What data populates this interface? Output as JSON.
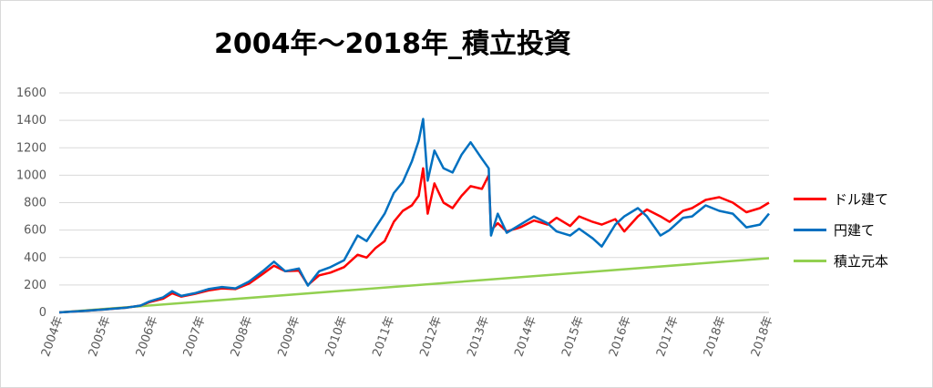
{
  "chart_data": {
    "type": "line",
    "title": "2004年～2018年_積立投資",
    "xlabel": "",
    "ylabel": "",
    "ylim": [
      0,
      1600
    ],
    "y_ticks": [
      "0",
      "200",
      "400",
      "600",
      "800",
      "1000",
      "1200",
      "1400",
      "1600"
    ],
    "x_ticks": [
      "2004年",
      "2005年",
      "2006年",
      "2007年",
      "2008年",
      "2009年",
      "2010年",
      "2011年",
      "2012年",
      "2013年",
      "2014年",
      "2015年",
      "2016年",
      "2017年",
      "2018年",
      "2018年"
    ],
    "grid": true,
    "legend_position": "right",
    "series": [
      {
        "name": "ドル建て",
        "color": "#ff0000",
        "points": [
          [
            2004.0,
            0
          ],
          [
            2004.5,
            10
          ],
          [
            2005.0,
            22
          ],
          [
            2005.5,
            35
          ],
          [
            2005.8,
            50
          ],
          [
            2006.0,
            75
          ],
          [
            2006.3,
            100
          ],
          [
            2006.5,
            140
          ],
          [
            2006.7,
            115
          ],
          [
            2007.0,
            135
          ],
          [
            2007.3,
            160
          ],
          [
            2007.6,
            175
          ],
          [
            2007.9,
            170
          ],
          [
            2008.2,
            210
          ],
          [
            2008.5,
            280
          ],
          [
            2008.75,
            340
          ],
          [
            2009.0,
            300
          ],
          [
            2009.3,
            305
          ],
          [
            2009.5,
            200
          ],
          [
            2009.75,
            270
          ],
          [
            2010.0,
            290
          ],
          [
            2010.3,
            330
          ],
          [
            2010.6,
            420
          ],
          [
            2010.8,
            400
          ],
          [
            2011.0,
            470
          ],
          [
            2011.2,
            520
          ],
          [
            2011.4,
            660
          ],
          [
            2011.6,
            740
          ],
          [
            2011.8,
            780
          ],
          [
            2011.95,
            850
          ],
          [
            2012.05,
            1050
          ],
          [
            2012.15,
            720
          ],
          [
            2012.3,
            940
          ],
          [
            2012.5,
            800
          ],
          [
            2012.7,
            760
          ],
          [
            2012.9,
            850
          ],
          [
            2013.1,
            920
          ],
          [
            2013.35,
            900
          ],
          [
            2013.5,
            1000
          ],
          [
            2013.55,
            600
          ],
          [
            2013.7,
            650
          ],
          [
            2013.9,
            590
          ],
          [
            2014.2,
            620
          ],
          [
            2014.5,
            670
          ],
          [
            2014.8,
            640
          ],
          [
            2015.0,
            690
          ],
          [
            2015.3,
            630
          ],
          [
            2015.5,
            700
          ],
          [
            2015.8,
            660
          ],
          [
            2016.0,
            640
          ],
          [
            2016.3,
            680
          ],
          [
            2016.5,
            590
          ],
          [
            2016.8,
            700
          ],
          [
            2017.0,
            750
          ],
          [
            2017.3,
            700
          ],
          [
            2017.5,
            660
          ],
          [
            2017.8,
            740
          ],
          [
            2018.0,
            760
          ],
          [
            2018.3,
            820
          ],
          [
            2018.6,
            840
          ],
          [
            2018.9,
            800
          ],
          [
            2019.2,
            730
          ],
          [
            2019.5,
            760
          ],
          [
            2019.7,
            800
          ]
        ]
      },
      {
        "name": "円建て",
        "color": "#0070c0",
        "points": [
          [
            2004.0,
            0
          ],
          [
            2004.5,
            10
          ],
          [
            2005.0,
            22
          ],
          [
            2005.5,
            35
          ],
          [
            2005.8,
            50
          ],
          [
            2006.0,
            80
          ],
          [
            2006.3,
            110
          ],
          [
            2006.5,
            155
          ],
          [
            2006.7,
            120
          ],
          [
            2007.0,
            140
          ],
          [
            2007.3,
            170
          ],
          [
            2007.6,
            185
          ],
          [
            2007.9,
            175
          ],
          [
            2008.2,
            225
          ],
          [
            2008.5,
            300
          ],
          [
            2008.75,
            370
          ],
          [
            2009.0,
            300
          ],
          [
            2009.3,
            320
          ],
          [
            2009.5,
            195
          ],
          [
            2009.75,
            300
          ],
          [
            2010.0,
            330
          ],
          [
            2010.3,
            380
          ],
          [
            2010.6,
            560
          ],
          [
            2010.8,
            520
          ],
          [
            2011.0,
            620
          ],
          [
            2011.2,
            720
          ],
          [
            2011.4,
            870
          ],
          [
            2011.6,
            950
          ],
          [
            2011.8,
            1100
          ],
          [
            2011.95,
            1250
          ],
          [
            2012.05,
            1410
          ],
          [
            2012.15,
            960
          ],
          [
            2012.3,
            1180
          ],
          [
            2012.5,
            1050
          ],
          [
            2012.7,
            1020
          ],
          [
            2012.9,
            1150
          ],
          [
            2013.1,
            1240
          ],
          [
            2013.35,
            1120
          ],
          [
            2013.5,
            1050
          ],
          [
            2013.55,
            560
          ],
          [
            2013.7,
            720
          ],
          [
            2013.9,
            580
          ],
          [
            2014.2,
            640
          ],
          [
            2014.5,
            700
          ],
          [
            2014.8,
            650
          ],
          [
            2015.0,
            590
          ],
          [
            2015.3,
            560
          ],
          [
            2015.5,
            610
          ],
          [
            2015.8,
            540
          ],
          [
            2016.0,
            480
          ],
          [
            2016.3,
            640
          ],
          [
            2016.5,
            700
          ],
          [
            2016.8,
            760
          ],
          [
            2017.0,
            700
          ],
          [
            2017.3,
            560
          ],
          [
            2017.5,
            600
          ],
          [
            2017.8,
            690
          ],
          [
            2018.0,
            700
          ],
          [
            2018.3,
            780
          ],
          [
            2018.6,
            740
          ],
          [
            2018.9,
            720
          ],
          [
            2019.2,
            620
          ],
          [
            2019.5,
            640
          ],
          [
            2019.7,
            720
          ]
        ]
      },
      {
        "name": "積立元本",
        "color": "#92d050",
        "points": [
          [
            2004.0,
            0
          ],
          [
            2019.7,
            395
          ]
        ]
      }
    ]
  }
}
